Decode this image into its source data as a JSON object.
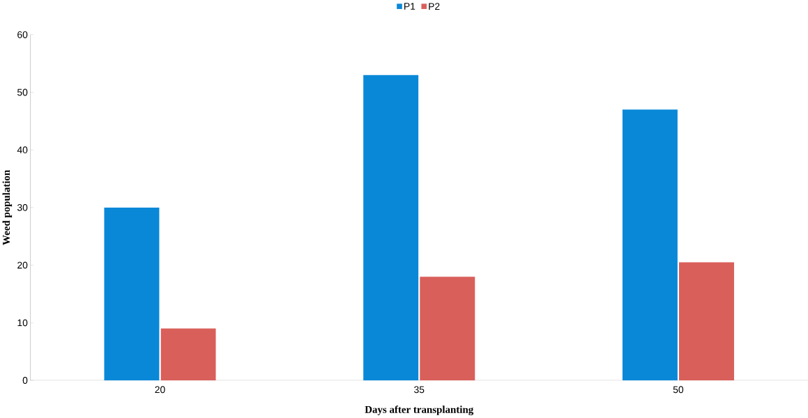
{
  "chart_data": {
    "type": "bar",
    "xlabel": "Days after transplanting",
    "ylabel": "Weed population",
    "categories": [
      "20",
      "35",
      "50"
    ],
    "series": [
      {
        "name": "P1",
        "color": "#0a88d8",
        "values": [
          30,
          53,
          47
        ]
      },
      {
        "name": "P2",
        "color": "#d95f5a",
        "values": [
          9,
          18,
          20.5
        ]
      }
    ],
    "ylim": [
      0,
      60
    ],
    "yticks": [
      0,
      10,
      20,
      30,
      40,
      50,
      60
    ],
    "grid": false,
    "legend": "top"
  }
}
